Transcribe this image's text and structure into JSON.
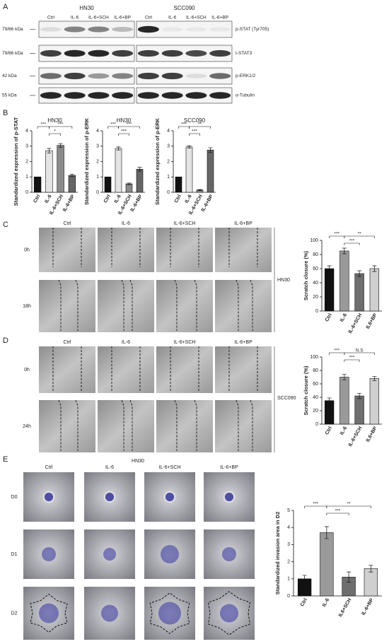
{
  "panel_labels": [
    "A",
    "B",
    "C",
    "D",
    "E"
  ],
  "blot": {
    "groups": [
      {
        "title": "HN30",
        "lanes": [
          "Ctrl",
          "IL-6",
          "IL-6+SCH",
          "IL-6+BP"
        ]
      },
      {
        "title": "SCC090",
        "lanes": [
          "Ctrl",
          "IL-6",
          "IL-6+SCH",
          "IL-6+BP"
        ]
      }
    ],
    "rows": [
      {
        "size": "79/86 kDa",
        "protein": "p-STAT (Tyr705)"
      },
      {
        "size": "79/86 kDa",
        "protein": "t-STAT3"
      },
      {
        "size": "42 kDa",
        "protein": "p-ERK1/2"
      },
      {
        "size": "55 kDa",
        "protein": "α-Tubulin"
      }
    ]
  },
  "chart_data": [
    {
      "type": "bar",
      "title": "HN30",
      "y_label": "Standardized expression of p-STAT",
      "categories": [
        "Ctrl",
        "IL-6",
        "IL-6+SCH",
        "IL-6+BP"
      ],
      "values": [
        1,
        2.7,
        3.05,
        1.1
      ],
      "errors": [
        0,
        0.15,
        0.12,
        0.08
      ],
      "colors": [
        "#111111",
        "#e4e4e4",
        "#8a8a8a",
        "#666666"
      ],
      "ylim": [
        0,
        4
      ],
      "yticks": [
        0,
        1,
        2,
        3,
        4
      ],
      "annotations": [
        "***",
        "*",
        "***"
      ]
    },
    {
      "type": "bar",
      "title": "HN30",
      "y_label": "Standardized expression of p-ERK",
      "categories": [
        "Ctrl",
        "IL-6",
        "IL-6+SCH",
        "IL-6+BP"
      ],
      "values": [
        1,
        2.85,
        0.55,
        1.5
      ],
      "errors": [
        0,
        0.1,
        0.05,
        0.12
      ],
      "colors": [
        "#111111",
        "#e4e4e4",
        "#8a8a8a",
        "#666666"
      ],
      "ylim": [
        0,
        4
      ],
      "yticks": [
        0,
        1,
        2,
        3,
        4
      ],
      "annotations": [
        "***",
        "***",
        "***"
      ]
    },
    {
      "type": "bar",
      "title": "SCC090",
      "y_label": "Standardized expression of p-ERK",
      "categories": [
        "Ctrl",
        "IL-6",
        "IL-6+SCH",
        "IL-6+BP"
      ],
      "values": [
        1,
        2.95,
        0.15,
        2.75
      ],
      "errors": [
        0,
        0.08,
        0.03,
        0.15
      ],
      "colors": [
        "#111111",
        "#e4e4e4",
        "#8a8a8a",
        "#666666"
      ],
      "ylim": [
        0,
        4
      ],
      "yticks": [
        0,
        1,
        2,
        3,
        4
      ],
      "annotations": [
        "***",
        "***",
        "**"
      ]
    },
    {
      "type": "bar",
      "y_label": "Scratch closure (%)",
      "categories": [
        "Ctrl",
        "IL-6",
        "IL-6+SCH",
        "IL6+BP"
      ],
      "values": [
        60,
        85,
        53,
        60
      ],
      "errors": [
        4,
        4,
        4,
        4
      ],
      "colors": [
        "#111111",
        "#9a9a9a",
        "#6e6e6e",
        "#cfcfcf"
      ],
      "ylim": [
        0,
        100
      ],
      "yticks": [
        0,
        20,
        40,
        60,
        80,
        100
      ],
      "annotations": [
        "***",
        "***",
        "**"
      ]
    },
    {
      "type": "bar",
      "y_label": "Scratch closure (%)",
      "categories": [
        "Ctrl",
        "IL-6",
        "IL-6+SCH",
        "IL6+BP"
      ],
      "values": [
        35,
        70,
        42,
        68
      ],
      "errors": [
        4,
        4,
        4,
        3
      ],
      "colors": [
        "#111111",
        "#9a9a9a",
        "#6e6e6e",
        "#cfcfcf"
      ],
      "ylim": [
        0,
        100
      ],
      "yticks": [
        0,
        20,
        40,
        60,
        80,
        100
      ],
      "annotations": [
        "***",
        "***",
        "N.S"
      ]
    },
    {
      "type": "bar",
      "y_label": "Standardized invasion area in D2",
      "categories": [
        "Ctrl",
        "IL-6",
        "IL6+SCH",
        "IL-6+BP"
      ],
      "values": [
        1,
        3.7,
        1.1,
        1.6
      ],
      "errors": [
        0.2,
        0.35,
        0.3,
        0.2
      ],
      "colors": [
        "#111111",
        "#9a9a9a",
        "#6e6e6e",
        "#cfcfcf"
      ],
      "ylim": [
        0,
        5
      ],
      "yticks": [
        0,
        1,
        2,
        3,
        4,
        5
      ],
      "annotations": [
        "***",
        "***",
        "**"
      ]
    }
  ],
  "scratch": [
    {
      "columns": [
        "Ctrl",
        "IL-6",
        "IL-6+SCH",
        "IL-6+BP"
      ],
      "times": [
        "0h",
        "18h"
      ],
      "cell_line": "HN30"
    },
    {
      "columns": [
        "Ctrl",
        "IL-6",
        "IL-6+SCH",
        "IL-6+BP"
      ],
      "times": [
        "0h",
        "24h"
      ],
      "cell_line": "SCC090"
    }
  ],
  "invasion": {
    "cell_line": "HN30",
    "columns": [
      "Ctrl",
      "IL-6",
      "IL-6+SCH",
      "IL-6+BP"
    ],
    "days": [
      "D0",
      "D1",
      "D2"
    ]
  }
}
